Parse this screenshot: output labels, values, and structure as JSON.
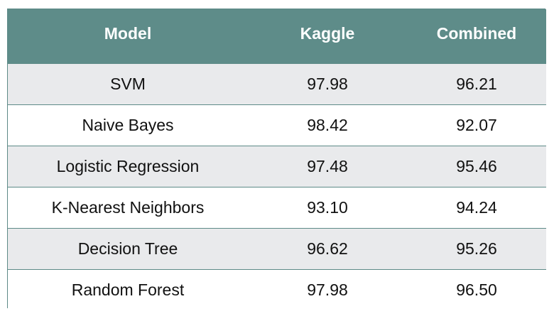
{
  "chart_data": {
    "type": "table",
    "columns": [
      "Model",
      "Kaggle",
      "Combined"
    ],
    "rows": [
      [
        "SVM",
        "97.98",
        "96.21"
      ],
      [
        "Naive Bayes",
        "98.42",
        "92.07"
      ],
      [
        "Logistic Regression",
        "97.48",
        "95.46"
      ],
      [
        "K-Nearest Neighbors",
        "93.10",
        "94.24"
      ],
      [
        "Decision Tree",
        "96.62",
        "95.26"
      ],
      [
        "Random Forest",
        "97.98",
        "96.50"
      ]
    ]
  },
  "colors": {
    "header_bg": "#5e8c89",
    "header_text": "#ffffff",
    "stripe": "#e9eaec",
    "border": "#5d8a87"
  }
}
